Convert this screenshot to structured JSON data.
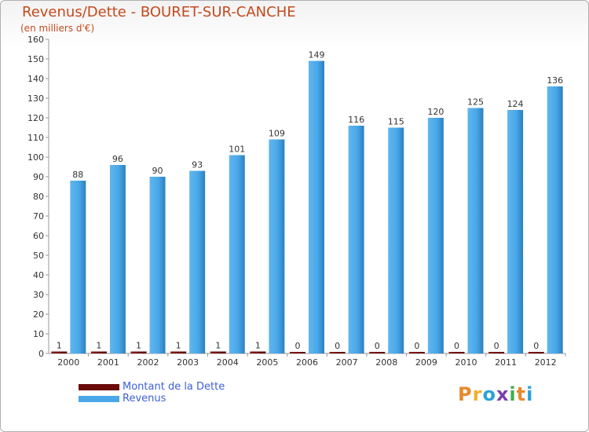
{
  "title": "Revenus/Dette - BOURET-SUR-CANCHE",
  "subtitle": "(en milliers d'€)",
  "brand": "Proxiti",
  "colors": {
    "title": "#c44a1e",
    "debt": "#6b0a0a",
    "revenue": "#4aa8e8",
    "revenue_dark": "#2d7fc0",
    "legend_text": "#3d5fd9",
    "grid": "#999999"
  },
  "legend": {
    "debt_label": "Montant de la Dette",
    "revenue_label": "Revenus"
  },
  "chart_data": {
    "type": "bar",
    "title": "Revenus/Dette - BOURET-SUR-CANCHE",
    "ylabel": "(en milliers d'€)",
    "xlabel": "",
    "categories": [
      "2000",
      "2001",
      "2002",
      "2003",
      "2004",
      "2005",
      "2006",
      "2007",
      "2008",
      "2009",
      "2010",
      "2011",
      "2012"
    ],
    "series": [
      {
        "name": "Montant de la Dette",
        "values": [
          1,
          1,
          1,
          1,
          1,
          1,
          0,
          0,
          0,
          0,
          0,
          0,
          0
        ]
      },
      {
        "name": "Revenus",
        "values": [
          88,
          96,
          90,
          93,
          101,
          109,
          149,
          116,
          115,
          120,
          125,
          124,
          136
        ]
      }
    ],
    "ylim": [
      0,
      160
    ],
    "yticks": [
      0,
      10,
      20,
      30,
      40,
      50,
      60,
      70,
      80,
      90,
      100,
      110,
      120,
      130,
      140,
      150,
      160
    ],
    "grid": false,
    "legend_position": "bottom-left"
  }
}
